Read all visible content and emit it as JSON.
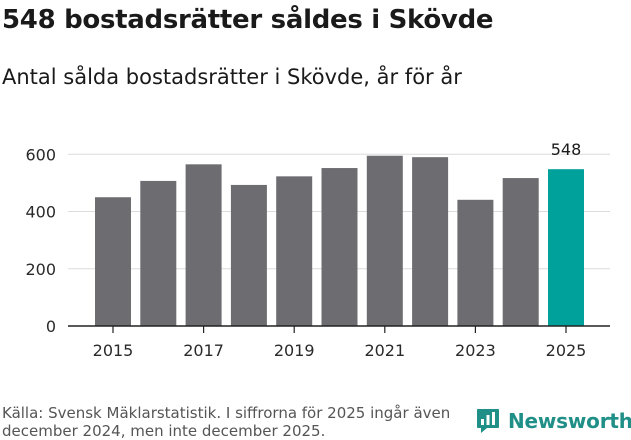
{
  "header": {
    "title": "548 bostadsrätter såldes i Skövde",
    "subtitle": "Antal sålda bostadsrätter i Skövde, år för år"
  },
  "chart_data": {
    "type": "bar",
    "title": "548 bostadsrätter såldes i Skövde",
    "subtitle": "Antal sålda bostadsrätter i Skövde, år för år",
    "xlabel": "",
    "ylabel": "",
    "categories": [
      "2015",
      "2016",
      "2017",
      "2018",
      "2019",
      "2020",
      "2021",
      "2022",
      "2023",
      "2024",
      "2025"
    ],
    "values": [
      450,
      507,
      565,
      493,
      523,
      552,
      595,
      590,
      441,
      517,
      548
    ],
    "x_tick_labels": [
      "2015",
      "2017",
      "2019",
      "2021",
      "2023",
      "2025"
    ],
    "y_ticks": [
      0,
      200,
      400,
      600
    ],
    "ylim": [
      0,
      650
    ],
    "grid": true,
    "bar_color": "#6d6c71",
    "highlight_color": "#00a19a",
    "highlight_index": 10,
    "annotations": [
      {
        "category": "2025",
        "label": "548"
      }
    ]
  },
  "footer": {
    "source": "Källa: Svensk Mäklarstatistik. I siffrorna för 2025 ingår även december 2024, men inte december 2025.",
    "brand": "Newsworthy",
    "brand_color": "#1f8f87"
  }
}
